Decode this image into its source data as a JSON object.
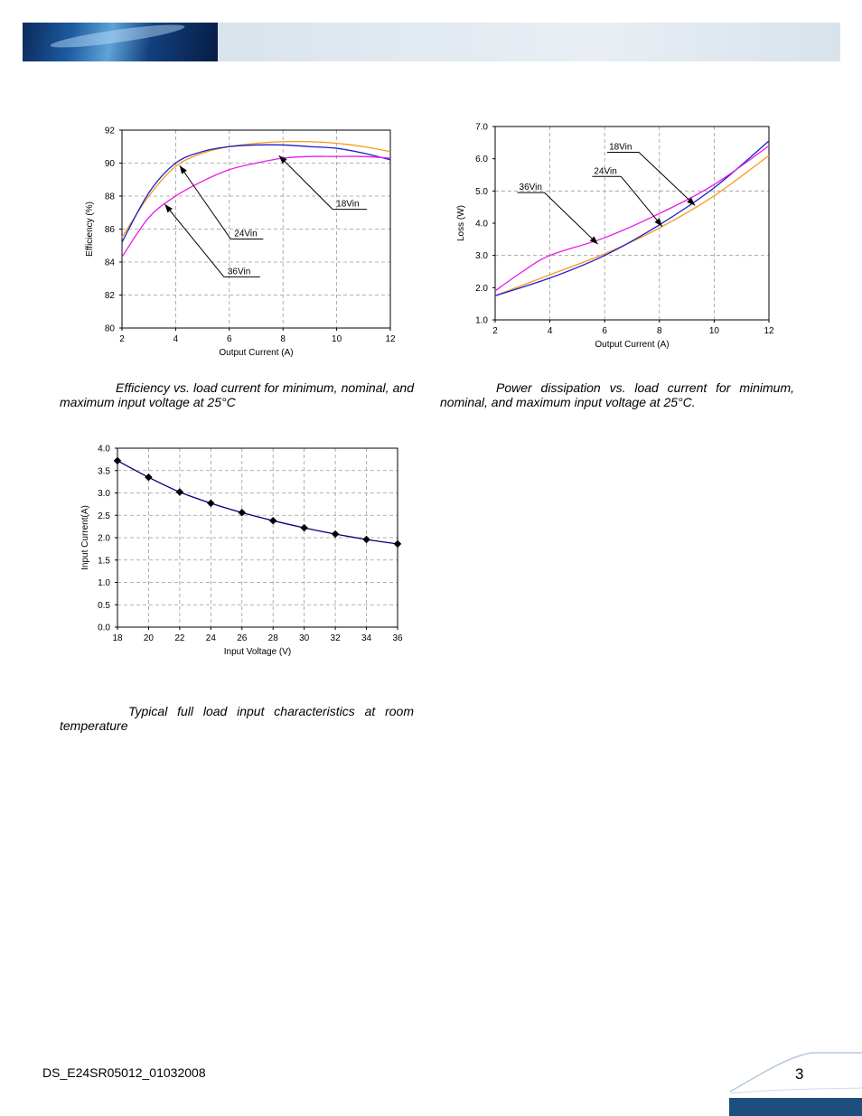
{
  "footer": {
    "doc_id": "DS_E24SR05012_01032008",
    "page_number": "3"
  },
  "captions": {
    "efficiency": "Efficiency vs. load current for minimum, nominal, and maximum input voltage at 25°C",
    "loss": "Power dissipation vs. load current for minimum, nominal, and maximum input voltage at 25°C.",
    "input": "Typical full load input characteristics at room temperature"
  },
  "chart_data": [
    {
      "id": "efficiency",
      "type": "line",
      "xlabel": "Output Current (A)",
      "ylabel": "Efficiency (%)",
      "xlim": [
        2,
        12
      ],
      "ylim": [
        80,
        92
      ],
      "xticks": [
        2,
        4,
        6,
        8,
        10,
        12
      ],
      "yticks": [
        80,
        82,
        84,
        86,
        88,
        90,
        92
      ],
      "grid": true,
      "series": [
        {
          "name": "18Vin",
          "color": "#f59a1a",
          "x": [
            2,
            3,
            4,
            5,
            6,
            7,
            8,
            9,
            10,
            11,
            12
          ],
          "y": [
            85.5,
            88.0,
            89.8,
            90.6,
            91.0,
            91.2,
            91.3,
            91.3,
            91.2,
            91.0,
            90.7
          ]
        },
        {
          "name": "24Vin",
          "color": "#1c1ccf",
          "x": [
            2,
            3,
            4,
            5,
            6,
            7,
            8,
            9,
            10,
            11,
            12
          ],
          "y": [
            85.2,
            88.2,
            90.0,
            90.7,
            91.0,
            91.1,
            91.1,
            91.0,
            90.9,
            90.6,
            90.2
          ]
        },
        {
          "name": "36Vin",
          "color": "#e81ae8",
          "x": [
            2,
            3,
            4,
            5,
            6,
            7,
            8,
            9,
            10,
            11,
            12
          ],
          "y": [
            84.3,
            86.7,
            88.0,
            88.9,
            89.6,
            90.0,
            90.3,
            90.4,
            90.4,
            90.4,
            90.3
          ]
        }
      ]
    },
    {
      "id": "loss",
      "type": "line",
      "xlabel": "Output Current (A)",
      "ylabel": "Loss (W)",
      "xlim": [
        2,
        12
      ],
      "ylim": [
        1.0,
        7.0
      ],
      "xticks": [
        2,
        4,
        6,
        8,
        10,
        12
      ],
      "yticks": [
        "1.0",
        "2.0",
        "3.0",
        "4.0",
        "5.0",
        "6.0",
        "7.0"
      ],
      "grid": true,
      "series": [
        {
          "name": "18Vin",
          "color": "#f59a1a",
          "x": [
            2,
            4,
            6,
            8,
            10,
            12
          ],
          "y": [
            1.75,
            2.4,
            3.05,
            3.85,
            4.85,
            6.1
          ]
        },
        {
          "name": "24Vin",
          "color": "#1c1ccf",
          "x": [
            2,
            4,
            6,
            8,
            10,
            12
          ],
          "y": [
            1.75,
            2.3,
            3.0,
            3.95,
            5.1,
            6.55
          ]
        },
        {
          "name": "36Vin",
          "color": "#e81ae8",
          "x": [
            2,
            3,
            4,
            6,
            8,
            10,
            12
          ],
          "y": [
            1.9,
            2.5,
            3.0,
            3.55,
            4.3,
            5.2,
            6.4
          ]
        }
      ]
    },
    {
      "id": "input",
      "type": "line",
      "xlabel": "Input Voltage (V)",
      "ylabel": "Input Current(A)",
      "xlim": [
        18,
        36
      ],
      "ylim": [
        0.0,
        4.0
      ],
      "xticks": [
        18,
        20,
        22,
        24,
        26,
        28,
        30,
        32,
        34,
        36
      ],
      "yticks": [
        "0.0",
        "0.5",
        "1.0",
        "1.5",
        "2.0",
        "2.5",
        "3.0",
        "3.5",
        "4.0"
      ],
      "grid": true,
      "series": [
        {
          "color": "#00007a",
          "x": [
            18,
            20,
            22,
            24,
            26,
            28,
            30,
            32,
            34,
            36
          ],
          "y": [
            3.72,
            3.35,
            3.02,
            2.77,
            2.56,
            2.38,
            2.22,
            2.08,
            1.96,
            1.86
          ]
        }
      ]
    }
  ]
}
